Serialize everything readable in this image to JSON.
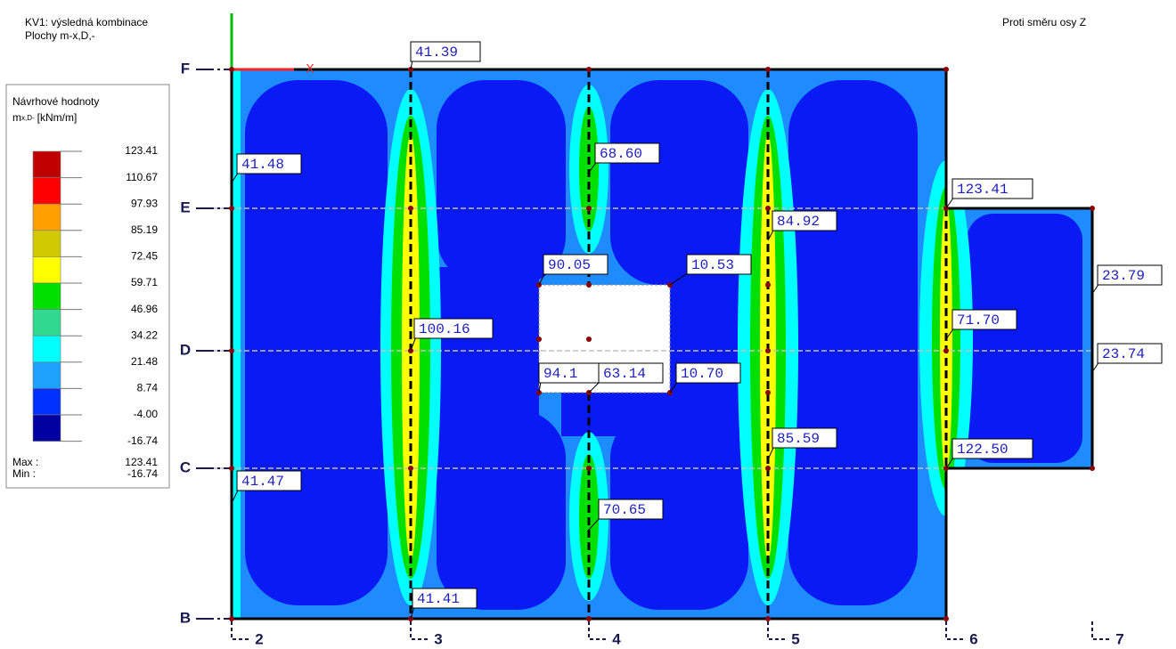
{
  "header": {
    "combination": "KV1: výsledná kombinace",
    "result": "Plochy m-x,D,-",
    "view": "Proti směru osy Z"
  },
  "legend": {
    "title": "Návrhové hodnoty",
    "symbol": "m",
    "subscript": "x,D-",
    "unit": "[kNm/m]",
    "levels": [
      "123.41",
      "110.67",
      "97.93",
      "85.19",
      "72.45",
      "59.71",
      "46.96",
      "34.22",
      "21.48",
      "8.74",
      "-4.00",
      "-16.74"
    ],
    "colors": [
      "#c00000",
      "#ff0000",
      "#ffa000",
      "#d0c800",
      "#ffff00",
      "#00e000",
      "#30d890",
      "#00ffff",
      "#1ea0ff",
      "#0030ff",
      "#0000a0"
    ],
    "max_label": "Max :",
    "max": "123.41",
    "min_label": "Min :",
    "min": "-16.74"
  },
  "axes": {
    "x": "X"
  },
  "grid": {
    "rows": [
      "F",
      "E",
      "D",
      "C",
      "B"
    ],
    "columns": [
      "2",
      "3",
      "4",
      "5",
      "6",
      "7"
    ]
  },
  "annotations": [
    "41.39",
    "41.48",
    "68.60",
    "123.41",
    "84.92",
    "90.05",
    "10.53",
    "23.79",
    "100.16",
    "71.70",
    "23.74",
    "94.1",
    "63.14",
    "10.70",
    "85.59",
    "122.50",
    "41.47",
    "70.65",
    "41.41"
  ]
}
